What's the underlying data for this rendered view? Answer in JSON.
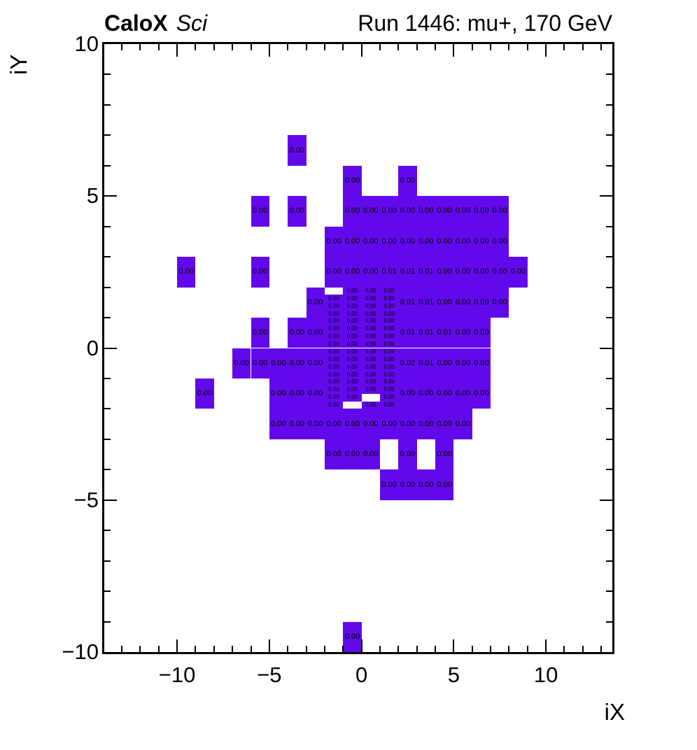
{
  "header": {
    "left_bold": "CaloX",
    "left_italic": "Sci",
    "right": "Run 1446: mu+, 170 GeV"
  },
  "chart_data": {
    "type": "heatmap",
    "title": "Run 1446: mu+, 170 GeV",
    "xlabel": "iX",
    "ylabel": "iY",
    "xlim": [
      -13.95,
      13.6
    ],
    "ylim": [
      -10,
      10
    ],
    "grid": false,
    "fill_color": "#6209EC",
    "text_color": "#000000",
    "x_ticks": [
      {
        "v": -10,
        "label": "−10"
      },
      {
        "v": -5,
        "label": "−5"
      },
      {
        "v": 0,
        "label": "0"
      },
      {
        "v": 5,
        "label": "5"
      },
      {
        "v": 10,
        "label": "10"
      }
    ],
    "y_ticks": [
      {
        "v": 10,
        "label": "10"
      },
      {
        "v": 5,
        "label": "5"
      },
      {
        "v": 0,
        "label": "0"
      },
      {
        "v": -5,
        "label": "−5"
      },
      {
        "v": -10,
        "label": "−10"
      }
    ],
    "minor_tick_step": 1,
    "major_tick_step": 5,
    "coarse_cells": [
      [
        -4,
        6,
        "0.00"
      ],
      [
        -1,
        5,
        "0.00"
      ],
      [
        2,
        5,
        "0.00"
      ],
      [
        -6,
        4,
        "0.00"
      ],
      [
        -4,
        4,
        "0.00"
      ],
      [
        -1,
        4,
        "0.00"
      ],
      [
        0,
        4,
        "0.00"
      ],
      [
        1,
        4,
        "0.00"
      ],
      [
        2,
        4,
        "0.00"
      ],
      [
        3,
        4,
        "0.00"
      ],
      [
        4,
        4,
        "0.00"
      ],
      [
        5,
        4,
        "0.00"
      ],
      [
        6,
        4,
        "0.00"
      ],
      [
        7,
        4,
        "0.00"
      ],
      [
        -2,
        3,
        "0.00"
      ],
      [
        -1,
        3,
        "0.00"
      ],
      [
        0,
        3,
        "0.00"
      ],
      [
        1,
        3,
        "0.00"
      ],
      [
        2,
        3,
        "0.00"
      ],
      [
        3,
        3,
        "0.00"
      ],
      [
        4,
        3,
        "0.00"
      ],
      [
        5,
        3,
        "0.00"
      ],
      [
        6,
        3,
        "0.00"
      ],
      [
        7,
        3,
        "0.00"
      ],
      [
        -10,
        2,
        "0.00"
      ],
      [
        -6,
        2,
        "0.00"
      ],
      [
        -2,
        2,
        "0.00"
      ],
      [
        -1,
        2,
        "0.00"
      ],
      [
        0,
        2,
        "0.00"
      ],
      [
        1,
        2,
        "0.01"
      ],
      [
        2,
        2,
        "0.01"
      ],
      [
        3,
        2,
        "0.01"
      ],
      [
        4,
        2,
        "0.00"
      ],
      [
        5,
        2,
        "0.00"
      ],
      [
        6,
        2,
        "0.00"
      ],
      [
        7,
        2,
        "0.00"
      ],
      [
        8,
        2,
        "0.00"
      ],
      [
        -3,
        1,
        "0.00"
      ],
      [
        2,
        1,
        "0.01"
      ],
      [
        3,
        1,
        "0.01"
      ],
      [
        4,
        1,
        "0.00"
      ],
      [
        5,
        1,
        "0.00"
      ],
      [
        6,
        1,
        "0.00"
      ],
      [
        7,
        1,
        "0.00"
      ],
      [
        -6,
        0,
        "0.00"
      ],
      [
        -4,
        0,
        "0.00"
      ],
      [
        -3,
        0,
        "0.00"
      ],
      [
        2,
        0,
        "0.01"
      ],
      [
        3,
        0,
        "0.01"
      ],
      [
        4,
        0,
        "0.01"
      ],
      [
        5,
        0,
        "0.00"
      ],
      [
        6,
        0,
        "0.00"
      ],
      [
        -7,
        -1,
        "0.00"
      ],
      [
        -6,
        -1,
        "0.00"
      ],
      [
        -5,
        -1,
        "0.00"
      ],
      [
        -4,
        -1,
        "0.00"
      ],
      [
        -3,
        -1,
        "0.00"
      ],
      [
        2,
        -1,
        "0.02"
      ],
      [
        3,
        -1,
        "0.01"
      ],
      [
        4,
        -1,
        "0.00"
      ],
      [
        5,
        -1,
        "0.00"
      ],
      [
        6,
        -1,
        "0.00"
      ],
      [
        -9,
        -2,
        "0.00"
      ],
      [
        -5,
        -2,
        "0.00"
      ],
      [
        -4,
        -2,
        "0.00"
      ],
      [
        -3,
        -2,
        "0.00"
      ],
      [
        2,
        -2,
        "0.00"
      ],
      [
        3,
        -2,
        "0.00"
      ],
      [
        4,
        -2,
        "0.00"
      ],
      [
        5,
        -2,
        "0.00"
      ],
      [
        6,
        -2,
        "0.00"
      ],
      [
        -5,
        -3,
        "0.00"
      ],
      [
        -4,
        -3,
        "0.00"
      ],
      [
        -3,
        -3,
        "0.00"
      ],
      [
        -2,
        -3,
        "0.00"
      ],
      [
        -1,
        -3,
        "0.00"
      ],
      [
        0,
        -3,
        "0.00"
      ],
      [
        1,
        -3,
        "0.00"
      ],
      [
        2,
        -3,
        "0.00"
      ],
      [
        3,
        -3,
        "0.00"
      ],
      [
        4,
        -3,
        "0.00"
      ],
      [
        5,
        -3,
        "0.00"
      ],
      [
        -2,
        -4,
        "0.00"
      ],
      [
        -1,
        -4,
        "0.00"
      ],
      [
        0,
        -4,
        "0.00"
      ],
      [
        2,
        -4,
        "0.00"
      ],
      [
        4,
        -4,
        "0.00"
      ],
      [
        1,
        -5,
        "0.00"
      ],
      [
        2,
        -5,
        "0.00"
      ],
      [
        3,
        -5,
        "0.00"
      ],
      [
        4,
        -5,
        "0.00"
      ],
      [
        -1,
        -10,
        "0.00"
      ]
    ],
    "fine_region": {
      "x_bins": [
        -2,
        -1,
        0,
        1
      ],
      "cell_w": 1,
      "cell_h": 0.25,
      "y_bottom": -2,
      "n_rows": 16,
      "value": "0.00",
      "missing_cells": [
        [
          -2,
          1.75
        ],
        [
          0,
          -1.75
        ],
        [
          -1,
          -2
        ]
      ]
    }
  }
}
